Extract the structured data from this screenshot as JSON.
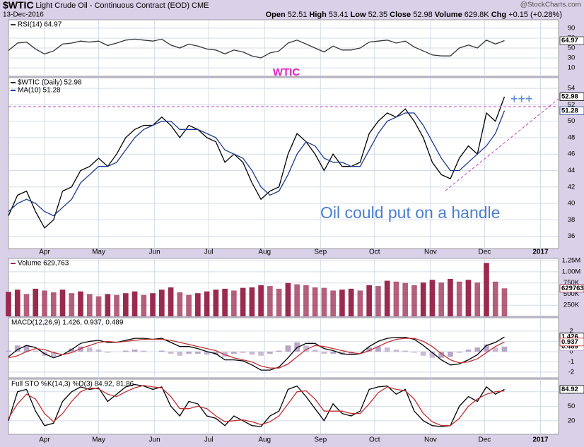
{
  "header": {
    "symbol": "$WTIC",
    "name": "Light Crude Oil - Continuous Contract (EOD) CME",
    "date": "13-Dec-2016",
    "source": "@StockCharts.com",
    "quote": {
      "open_label": "Open",
      "open": 52.51,
      "high_label": "High",
      "high": 53.41,
      "low_label": "Low",
      "low": 52.35,
      "close_label": "Close",
      "close": 52.98,
      "volume_label": "Volume",
      "volume": "629.8K",
      "chg_label": "Chg",
      "chg": "+0.15 (+0.28%)"
    },
    "annotations": [
      "WTIC",
      "Oil could put on a handle",
      "+++"
    ]
  },
  "chart_data": {
    "type": "financial",
    "x": [
      0,
      5,
      10,
      15,
      20,
      25,
      30,
      35,
      40,
      45,
      50,
      55,
      60,
      65,
      70,
      75,
      80,
      85,
      90,
      95,
      100,
      105,
      110,
      115,
      120,
      125,
      130,
      135,
      140,
      145,
      150,
      155,
      160,
      165,
      170,
      175,
      180,
      185,
      190,
      195,
      200,
      205,
      210,
      215,
      220,
      225,
      230,
      235,
      240,
      245,
      250,
      255,
      260,
      265,
      270,
      275
    ],
    "xlim": [
      0,
      305
    ],
    "xticks": [
      {
        "value": 20,
        "label": "Apr"
      },
      {
        "value": 50,
        "label": "May"
      },
      {
        "value": 81,
        "label": "Jun"
      },
      {
        "value": 111,
        "label": "Jul"
      },
      {
        "value": 142,
        "label": "Aug"
      },
      {
        "value": 173,
        "label": "Sep"
      },
      {
        "value": 203,
        "label": "Oct"
      },
      {
        "value": 234,
        "label": "Nov"
      },
      {
        "value": 264,
        "label": "Dec"
      },
      {
        "value": 295,
        "label": "2017"
      }
    ],
    "grid": true,
    "panels": [
      {
        "ylim": [
          -7,
          107
        ],
        "yticks": [
          10,
          30,
          50,
          70,
          90
        ],
        "series": [
          {
            "name": "RSI(14) 64.97",
            "type": "line",
            "color": "#333333",
            "tag": true,
            "values": [
              45,
              60,
              62,
              48,
              38,
              44,
              58,
              60,
              64,
              62,
              64,
              55,
              60,
              66,
              68,
              66,
              64,
              68,
              56,
              50,
              58,
              54,
              48,
              46,
              38,
              46,
              42,
              34,
              30,
              40,
              44,
              60,
              66,
              58,
              50,
              42,
              54,
              46,
              46,
              50,
              62,
              64,
              66,
              60,
              64,
              52,
              44,
              36,
              34,
              34,
              50,
              56,
              50,
              66,
              58,
              64.97
            ]
          }
        ]
      },
      {
        "ylim": [
          34.5,
          55.3
        ],
        "yticks": [
          36,
          38,
          40,
          42,
          44,
          46,
          48,
          50,
          52,
          54
        ],
        "series": [
          {
            "name": "$WTIC (Daily) 52.98",
            "type": "line",
            "color": "#000000",
            "tag": true,
            "values": [
              38.5,
              41,
              41.5,
              39,
              37,
              38,
              41.5,
              42,
              44,
              44.5,
              45.5,
              44.5,
              46,
              48,
              49,
              49.5,
              49.5,
              50.5,
              49.5,
              48,
              49.5,
              49,
              48,
              47.5,
              45,
              46,
              45,
              42.5,
              40.5,
              41.5,
              42,
              46,
              48.5,
              47.5,
              46,
              44,
              46,
              44.5,
              44.5,
              45,
              48.5,
              50,
              51,
              50.5,
              51.5,
              50,
              48,
              45,
              43.5,
              43,
              45.5,
              47,
              46,
              51,
              50,
              52.98
            ]
          },
          {
            "name": "MA(10) 51.28",
            "type": "line",
            "color": "#1e3a8a",
            "tag": true,
            "values": [
              39,
              40,
              40.5,
              40,
              39,
              38.5,
              39.5,
              40.5,
              42.5,
              43.5,
              44.5,
              44.5,
              45,
              46.5,
              48,
              49,
              49.5,
              50,
              50,
              49,
              49,
              49,
              48.5,
              48,
              46.5,
              46,
              45.5,
              44,
              42,
              41,
              41.5,
              43.5,
              46,
              47.5,
              47,
              45.5,
              45,
              45,
              44.5,
              44.5,
              46.5,
              48.5,
              50,
              50.5,
              51,
              51,
              49.5,
              47.5,
              45.5,
              44,
              44,
              45,
              46,
              47,
              48.5,
              51.28
            ]
          }
        ]
      },
      {
        "ylim": [
          0,
          1300000
        ],
        "yticks": [
          {
            "value": 250000,
            "label": "250K"
          },
          {
            "value": 500000,
            "label": "500K"
          },
          {
            "value": 750000,
            "label": "750K"
          },
          {
            "value": 1000000,
            "label": "1.00M"
          },
          {
            "value": 1250000,
            "label": "1.25M"
          }
        ],
        "series": [
          {
            "name": "Volume 629,763",
            "type": "bar",
            "color": "#9b2a4f",
            "tag": true,
            "values": [
              550000,
              600000,
              500000,
              620000,
              580000,
              540000,
              600000,
              520000,
              560000,
              500000,
              450000,
              500000,
              480000,
              520000,
              560000,
              480000,
              520000,
              600000,
              650000,
              540000,
              480000,
              520000,
              560000,
              600000,
              620000,
              580000,
              640000,
              650000,
              700000,
              680000,
              620000,
              750000,
              720000,
              700000,
              650000,
              640000,
              580000,
              600000,
              620000,
              580000,
              700000,
              680000,
              800000,
              780000,
              750000,
              700000,
              760000,
              820000,
              760000,
              840000,
              780000,
              820000,
              760000,
              1200000,
              780000,
              629763
            ]
          }
        ]
      },
      {
        "label": "MACD(12,26,9) 1.426, 0.937, 0.489",
        "ylim": [
          -2.55,
          3.3
        ],
        "yticks": [
          -2,
          -1,
          0,
          1,
          2
        ],
        "series": [
          {
            "type": "bar",
            "color": "#b8a6c8",
            "tag": true,
            "values": [
              0.1,
              0.6,
              0.6,
              0.1,
              -0.4,
              -0.5,
              0,
              0.3,
              0.5,
              0.4,
              0.2,
              -0.1,
              0,
              0.1,
              0.2,
              0.1,
              0,
              0.1,
              -0.2,
              -0.4,
              -0.2,
              -0.2,
              -0.3,
              -0.3,
              -0.5,
              -0.2,
              -0.1,
              -0.3,
              -0.4,
              -0.2,
              0.1,
              0.6,
              0.9,
              0.6,
              0.2,
              -0.2,
              -0.2,
              -0.3,
              -0.2,
              0,
              0.4,
              0.5,
              0.4,
              0.2,
              0.1,
              -0.1,
              -0.4,
              -0.6,
              -0.6,
              -0.5,
              -0.1,
              0.2,
              0.4,
              0.7,
              0.4,
              0.489
            ]
          },
          {
            "type": "line",
            "color": "#000000",
            "tag": true,
            "values": [
              -0.5,
              0.2,
              0.6,
              0.4,
              -0.2,
              -0.6,
              -0.3,
              0.2,
              0.8,
              1.0,
              1.1,
              0.9,
              0.9,
              1.1,
              1.3,
              1.3,
              1.2,
              1.3,
              0.9,
              0.5,
              0.5,
              0.3,
              0,
              -0.2,
              -0.8,
              -0.8,
              -0.9,
              -1.3,
              -1.8,
              -1.8,
              -1.5,
              -0.6,
              0.4,
              0.8,
              0.8,
              0.3,
              0.1,
              -0.2,
              -0.3,
              -0.2,
              0.5,
              1.0,
              1.3,
              1.4,
              1.4,
              1.2,
              0.6,
              -0.1,
              -0.8,
              -1.3,
              -1.2,
              -0.8,
              -0.3,
              0.6,
              0.9,
              1.426
            ]
          },
          {
            "type": "line",
            "color": "#c03030",
            "tag": true,
            "values": [
              -0.6,
              -0.4,
              0,
              0.3,
              0.2,
              -0.1,
              -0.3,
              -0.1,
              0.3,
              0.6,
              0.9,
              1.0,
              0.9,
              1.0,
              1.1,
              1.2,
              1.2,
              1.2,
              1.1,
              0.9,
              0.7,
              0.5,
              0.3,
              0.1,
              -0.3,
              -0.6,
              -0.8,
              -1.0,
              -1.4,
              -1.6,
              -1.6,
              -1.2,
              -0.5,
              0.2,
              0.6,
              0.5,
              0.3,
              0.1,
              -0.1,
              -0.2,
              0.1,
              0.5,
              0.9,
              1.2,
              1.3,
              1.3,
              1.0,
              0.5,
              -0.2,
              -0.8,
              -1.1,
              -1.0,
              -0.7,
              -0.1,
              0.5,
              0.937
            ]
          }
        ]
      },
      {
        "label": "Full STO %K(14,3) %D(3) 84.92, 81.86",
        "ylim": [
          -8,
          106
        ],
        "yticks": [
          20,
          50,
          80
        ],
        "series": [
          {
            "type": "line",
            "color": "#000000",
            "tag": true,
            "values": [
              20,
              80,
              85,
              40,
              10,
              15,
              60,
              80,
              90,
              85,
              88,
              60,
              75,
              90,
              95,
              92,
              85,
              90,
              50,
              30,
              60,
              55,
              30,
              25,
              10,
              30,
              20,
              10,
              8,
              30,
              40,
              85,
              92,
              70,
              45,
              20,
              55,
              35,
              30,
              40,
              85,
              90,
              92,
              75,
              85,
              40,
              20,
              10,
              8,
              10,
              50,
              70,
              60,
              90,
              75,
              84.92
            ]
          },
          {
            "type": "line",
            "color": "#c03030",
            "values": [
              25,
              55,
              75,
              65,
              35,
              18,
              35,
              60,
              80,
              88,
              86,
              75,
              70,
              80,
              88,
              93,
              90,
              88,
              70,
              45,
              45,
              50,
              45,
              30,
              18,
              20,
              22,
              18,
              12,
              18,
              30,
              55,
              80,
              82,
              65,
              40,
              40,
              40,
              35,
              35,
              55,
              78,
              90,
              85,
              82,
              65,
              35,
              18,
              10,
              10,
              25,
              50,
              65,
              75,
              80,
              81.86
            ]
          }
        ]
      }
    ]
  }
}
